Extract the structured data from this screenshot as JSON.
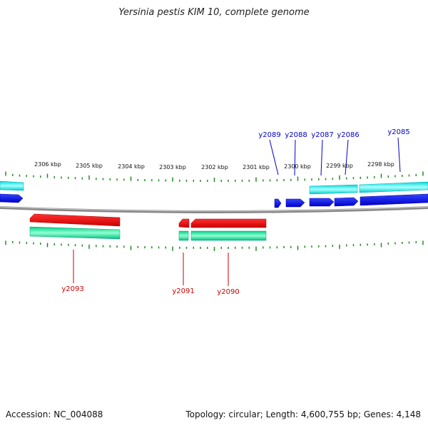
{
  "title": "Yersinia pestis KIM 10, complete genome",
  "footer": {
    "accession": "Accession: NC_004088",
    "topology": "Topology: circular; Length: 4,600,755 bp; Genes: 4,148"
  },
  "scale_labels": [
    "2306 kbp",
    "2305 kbp",
    "2304 kbp",
    "2303 kbp",
    "2302 kbp",
    "2301 kbp",
    "2300 kbp",
    "2299 kbp",
    "2298 kbp"
  ],
  "genes_forward": [
    "y2089",
    "y2088",
    "y2087",
    "y2086",
    "y2085"
  ],
  "genes_reverse": [
    "y2093",
    "y2091",
    "y2090"
  ],
  "colors": {
    "forward_gene": "#0000ee",
    "forward_cds": "#00e0e0",
    "reverse_gene": "#ee0000",
    "reverse_cds": "#00d890",
    "backbone": "#777777",
    "tick": "#228b22",
    "label_forward": "#0000cc",
    "label_reverse": "#cc0000"
  }
}
